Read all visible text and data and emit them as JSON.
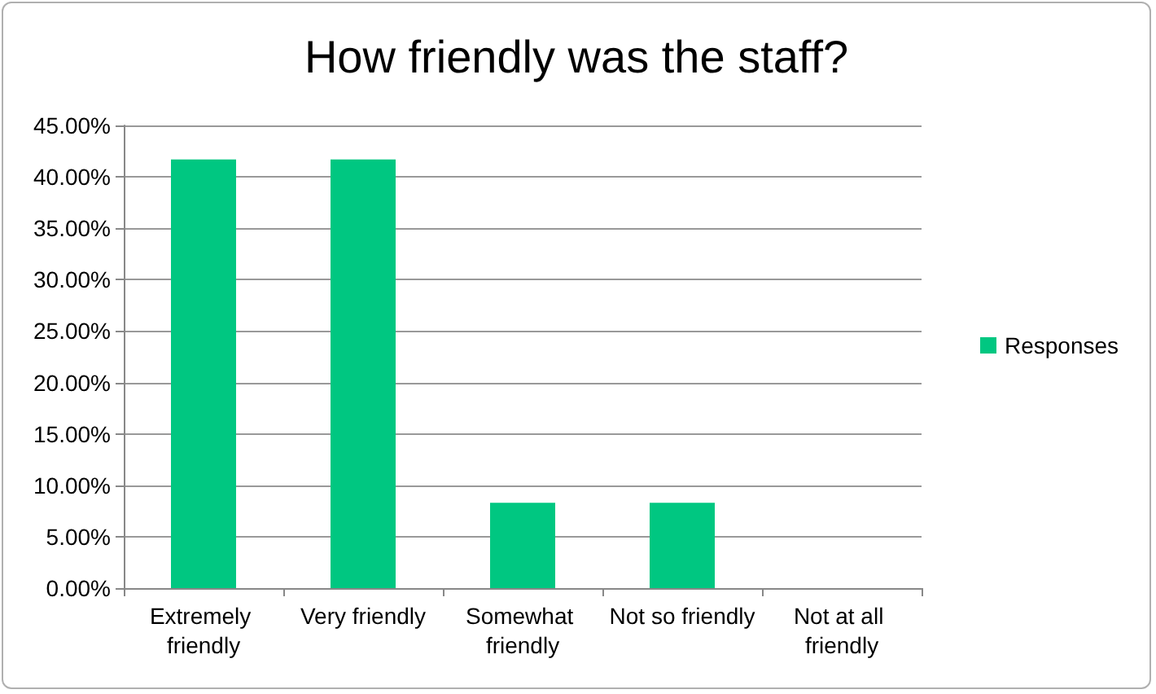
{
  "chart_data": {
    "type": "bar",
    "title": "How friendly was the staff?",
    "categories": [
      "Extremely friendly",
      "Very friendly",
      "Somewhat friendly",
      "Not so friendly",
      "Not at all friendly"
    ],
    "series": [
      {
        "name": "Responses",
        "color": "#00c781",
        "values": [
          41.7,
          41.7,
          8.3,
          8.3,
          0
        ]
      }
    ],
    "ylim": [
      0,
      45
    ],
    "yticks": [
      {
        "value": 0,
        "label": "0.00%"
      },
      {
        "value": 5,
        "label": "5.00%"
      },
      {
        "value": 10,
        "label": "10.00%"
      },
      {
        "value": 15,
        "label": "15.00%"
      },
      {
        "value": 20,
        "label": "20.00%"
      },
      {
        "value": 25,
        "label": "25.00%"
      },
      {
        "value": 30,
        "label": "30.00%"
      },
      {
        "value": 35,
        "label": "35.00%"
      },
      {
        "value": 40,
        "label": "40.00%"
      },
      {
        "value": 45,
        "label": "45.00%"
      }
    ],
    "grid": "y",
    "legend": "right"
  }
}
